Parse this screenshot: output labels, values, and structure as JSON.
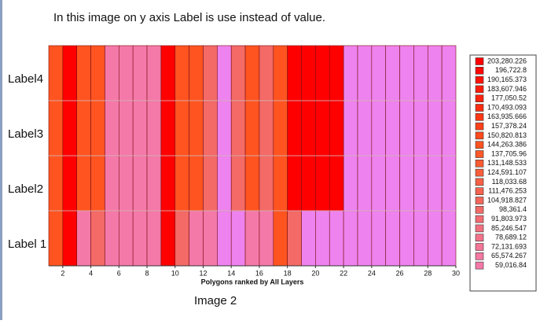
{
  "chart_data": {
    "type": "heatmap",
    "title": "In this image on y axis Label is use  instead of value.",
    "xlabel": "Polygons ranked by All Layers",
    "caption": "Image 2",
    "x": [
      1,
      2,
      3,
      4,
      5,
      6,
      7,
      8,
      9,
      10,
      11,
      12,
      13,
      14,
      15,
      16,
      17,
      18,
      19,
      20,
      21,
      22,
      23,
      24,
      25,
      26,
      27,
      28,
      29
    ],
    "xlim": [
      1,
      30
    ],
    "xticks": [
      2,
      4,
      6,
      8,
      10,
      12,
      14,
      16,
      18,
      20,
      22,
      24,
      26,
      28,
      30
    ],
    "rows": [
      {
        "name": "Label 1",
        "values": [
          150000,
          205000,
          62000,
          100000,
          62000,
          62000,
          62000,
          62000,
          205000,
          100000,
          62000,
          62000,
          50000,
          50000,
          62000,
          62000,
          150000,
          100000,
          50000,
          50000,
          50000,
          50000,
          50000,
          50000,
          50000,
          50000,
          50000,
          50000,
          50000
        ]
      },
      {
        "name": "Label2",
        "values": [
          150000,
          205000,
          150000,
          150000,
          62000,
          62000,
          62000,
          62000,
          205000,
          150000,
          150000,
          100000,
          50000,
          100000,
          150000,
          100000,
          150000,
          205000,
          205000,
          205000,
          205000,
          50000,
          50000,
          50000,
          50000,
          50000,
          50000,
          50000,
          50000
        ]
      },
      {
        "name": "Label3",
        "values": [
          150000,
          205000,
          150000,
          150000,
          62000,
          62000,
          62000,
          62000,
          205000,
          150000,
          150000,
          100000,
          50000,
          100000,
          150000,
          100000,
          150000,
          205000,
          205000,
          205000,
          205000,
          50000,
          50000,
          50000,
          50000,
          50000,
          50000,
          50000,
          50000
        ]
      },
      {
        "name": "Label4",
        "values": [
          150000,
          205000,
          150000,
          150000,
          62000,
          62000,
          62000,
          62000,
          205000,
          150000,
          150000,
          100000,
          50000,
          100000,
          150000,
          100000,
          150000,
          205000,
          205000,
          205000,
          205000,
          50000,
          50000,
          50000,
          50000,
          50000,
          50000,
          50000,
          50000
        ]
      }
    ],
    "legend_position": "right",
    "legend": [
      {
        "value": 203280.226,
        "label": "203,280.226",
        "color": "#ff0000"
      },
      {
        "value": 196722.8,
        "label": "196,722.8",
        "color": "#ff0904"
      },
      {
        "value": 190165.373,
        "label": "190,165.373",
        "color": "#ff1207"
      },
      {
        "value": 183607.946,
        "label": "183,607.946",
        "color": "#ff1c0b"
      },
      {
        "value": 177050.52,
        "label": "177,050.52",
        "color": "#ff250e"
      },
      {
        "value": 170493.093,
        "label": "170,493.093",
        "color": "#ff2e12"
      },
      {
        "value": 163935.666,
        "label": "163,935.666",
        "color": "#ff3815"
      },
      {
        "value": 157378.24,
        "label": "157,378.24",
        "color": "#ff4119"
      },
      {
        "value": 150820.813,
        "label": "150,820.813",
        "color": "#ff4a1c"
      },
      {
        "value": 144263.386,
        "label": "144,263.386",
        "color": "#ff5420"
      },
      {
        "value": 137705.96,
        "label": "137,705.96",
        "color": "#fd5828"
      },
      {
        "value": 131148.533,
        "label": "131,148.533",
        "color": "#fb5b32"
      },
      {
        "value": 124591.107,
        "label": "124,591.107",
        "color": "#f95e3c"
      },
      {
        "value": 118033.68,
        "label": "118,033.68",
        "color": "#f76146"
      },
      {
        "value": 111476.253,
        "label": "111,476.253",
        "color": "#f56450"
      },
      {
        "value": 104918.827,
        "label": "104,918.827",
        "color": "#f4675a"
      },
      {
        "value": 98361.4,
        "label": "98,361.4",
        "color": "#f36a66"
      },
      {
        "value": 91803.973,
        "label": "91,803.973",
        "color": "#f36c72"
      },
      {
        "value": 85246.547,
        "label": "85,246.547",
        "color": "#f36f7e"
      },
      {
        "value": 78689.12,
        "label": "78,689.12",
        "color": "#f3728a"
      },
      {
        "value": 72131.693,
        "label": "72,131.693",
        "color": "#f47596"
      },
      {
        "value": 65574.267,
        "label": "65,574.267",
        "color": "#f478a2"
      },
      {
        "value": 59016.84,
        "label": "59,016.84",
        "color": "#f479a9"
      }
    ],
    "low_color": "#ee82ee"
  }
}
